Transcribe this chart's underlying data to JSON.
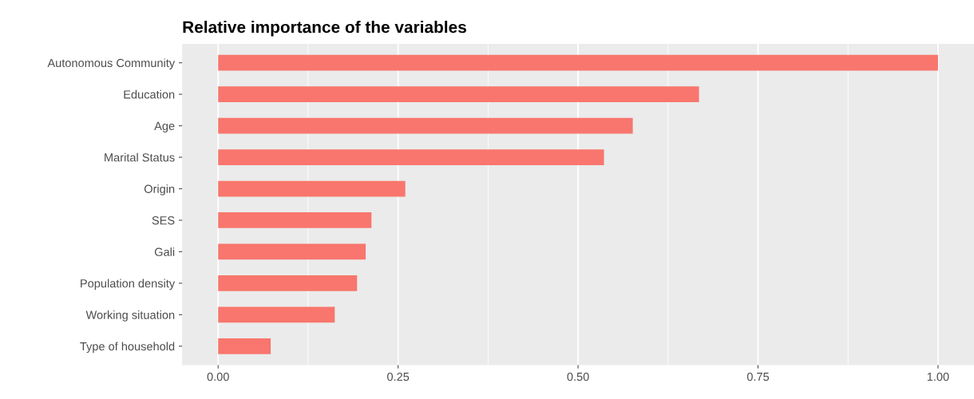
{
  "chart_data": {
    "type": "bar",
    "orientation": "horizontal",
    "title": "Relative importance of the variables",
    "categories": [
      "Autonomous Community",
      "Education",
      "Age",
      "Marital Status",
      "Origin",
      "SES",
      "Gali",
      "Population density",
      "Working situation",
      "Type of household"
    ],
    "values": [
      1.0,
      0.668,
      0.576,
      0.536,
      0.26,
      0.213,
      0.205,
      0.193,
      0.162,
      0.073
    ],
    "color": "#f8766d",
    "xlim": [
      -0.05,
      1.05
    ],
    "xticks": [
      {
        "value": 0,
        "label": "0.00"
      },
      {
        "value": 0.25,
        "label": "0.25"
      },
      {
        "value": 0.5,
        "label": "0.50"
      },
      {
        "value": 0.75,
        "label": "0.75"
      },
      {
        "value": 1,
        "label": "1.00"
      }
    ],
    "grid": "x"
  }
}
